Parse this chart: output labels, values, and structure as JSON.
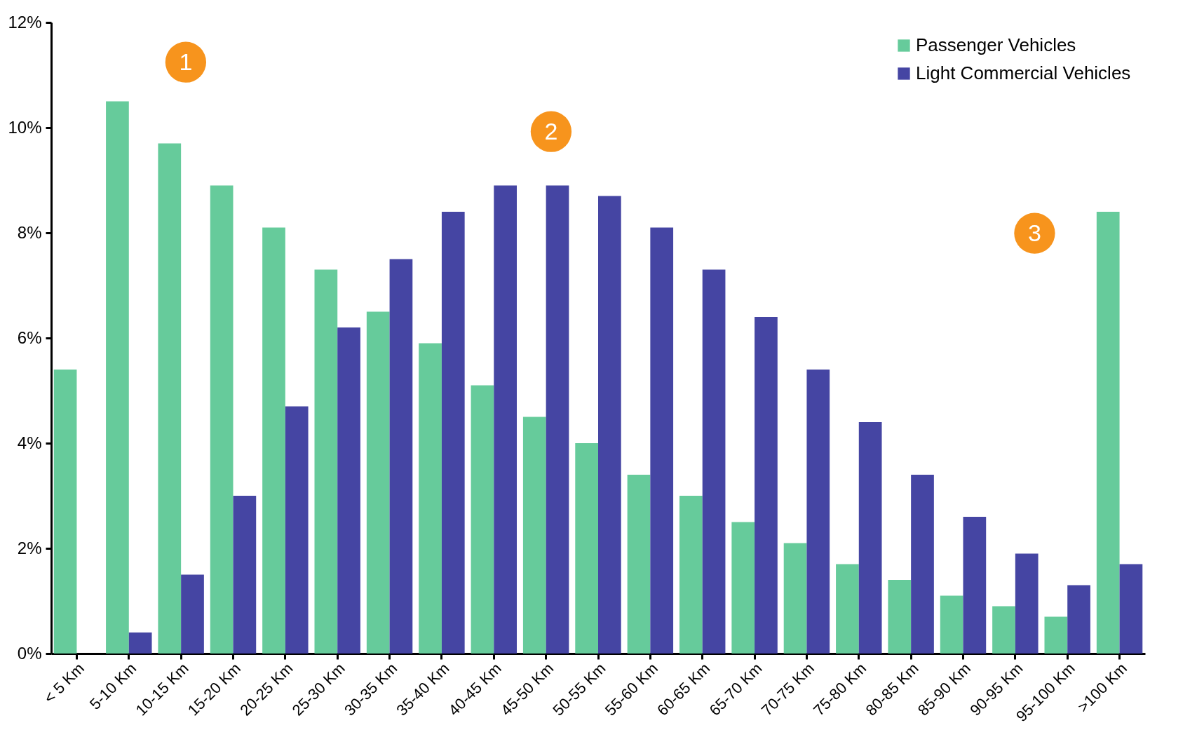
{
  "chart_data": {
    "type": "bar",
    "categories": [
      "< 5 Km",
      "5-10 Km",
      "10-15 Km",
      "15-20 Km",
      "20-25 Km",
      "25-30 Km",
      "30-35 Km",
      "35-40 Km",
      "40-45 Km",
      "45-50 Km",
      "50-55 Km",
      "55-60 Km",
      "60-65 Km",
      "65-70 Km",
      "70-75 Km",
      "75-80 Km",
      "80-85 Km",
      "85-90 Km",
      "90-95 Km",
      "95-100 Km",
      ">100 Km"
    ],
    "series": [
      {
        "name": "Passenger Vehicles",
        "color": "#5ec896",
        "values": [
          5.4,
          10.5,
          9.7,
          8.9,
          8.1,
          7.3,
          6.5,
          5.9,
          5.1,
          4.5,
          4.0,
          3.4,
          3.0,
          2.5,
          2.1,
          1.7,
          1.4,
          1.1,
          0.9,
          0.7,
          8.4
        ]
      },
      {
        "name": "Light Commercial Vehicles",
        "color": "#3b3b9e",
        "values": [
          0.0,
          0.4,
          1.5,
          3.0,
          4.7,
          6.2,
          7.5,
          8.4,
          8.9,
          8.9,
          8.7,
          8.1,
          7.3,
          6.4,
          5.4,
          4.4,
          3.4,
          2.6,
          1.9,
          1.3,
          1.7
        ]
      }
    ],
    "ylim": [
      0,
      12
    ],
    "yticks": [
      {
        "value": 0,
        "label": "0%"
      },
      {
        "value": 2,
        "label": "2%"
      },
      {
        "value": 4,
        "label": "4%"
      },
      {
        "value": 6,
        "label": "6%"
      },
      {
        "value": 8,
        "label": "8%"
      },
      {
        "value": 10,
        "label": "10%"
      },
      {
        "value": 12,
        "label": "12%"
      }
    ],
    "grid": false,
    "legend": "top right",
    "annotations": [
      "1",
      "2",
      "3"
    ]
  }
}
